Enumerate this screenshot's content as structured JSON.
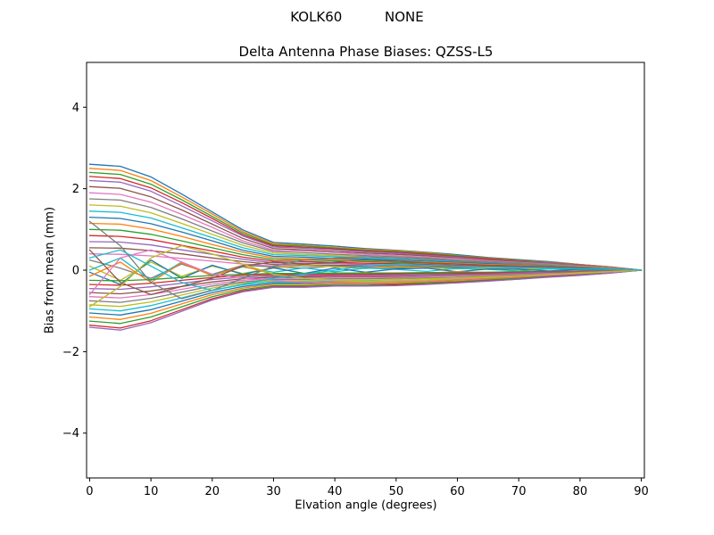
{
  "figure": {
    "suptitle": "KOLK60          NONE",
    "background": "#ffffff"
  },
  "chart_data": {
    "type": "line",
    "title": "Delta Antenna Phase Biases: QZSS-L5",
    "xlabel": "Elvation angle (degrees)",
    "ylabel": "Bias from mean (mm)",
    "xlim": [
      -0.5,
      90.5
    ],
    "ylim": [
      -5.1,
      5.1
    ],
    "xticks": [
      0,
      10,
      20,
      30,
      40,
      50,
      60,
      70,
      80,
      90
    ],
    "xtick_labels": [
      "0",
      "10",
      "20",
      "30",
      "40",
      "50",
      "60",
      "70",
      "80",
      "90"
    ],
    "yticks": [
      -4,
      -2,
      0,
      2,
      4
    ],
    "ytick_labels": [
      "−4",
      "−2",
      "0",
      "2",
      "4"
    ],
    "grid": false,
    "legend": null,
    "line_width": 1.3,
    "x": [
      0,
      5,
      10,
      15,
      20,
      25,
      30,
      35,
      40,
      45,
      50,
      55,
      60,
      65,
      70,
      75,
      80,
      85,
      90
    ],
    "series": [
      {
        "name": "line-01",
        "color": "#1f77b4",
        "values": [
          2.6,
          2.55,
          2.29,
          1.87,
          1.43,
          0.99,
          0.68,
          0.64,
          0.59,
          0.53,
          0.49,
          0.44,
          0.38,
          0.31,
          0.26,
          0.21,
          0.14,
          0.08,
          0
        ]
      },
      {
        "name": "line-02",
        "color": "#ff7f0e",
        "values": [
          2.5,
          2.45,
          2.2,
          1.8,
          1.38,
          0.95,
          0.65,
          0.61,
          0.56,
          0.51,
          0.48,
          0.43,
          0.36,
          0.3,
          0.25,
          0.2,
          0.14,
          0.08,
          0
        ]
      },
      {
        "name": "line-03",
        "color": "#2ca02c",
        "values": [
          2.4,
          2.35,
          2.11,
          1.73,
          1.32,
          0.91,
          0.62,
          0.59,
          0.54,
          0.49,
          0.46,
          0.41,
          0.35,
          0.29,
          0.24,
          0.19,
          0.13,
          0.07,
          0
        ]
      },
      {
        "name": "line-04",
        "color": "#d62728",
        "values": [
          2.3,
          2.25,
          2.02,
          1.66,
          1.27,
          0.87,
          0.6,
          0.56,
          0.52,
          0.47,
          0.44,
          0.39,
          0.33,
          0.28,
          0.23,
          0.18,
          0.13,
          0.07,
          0
        ]
      },
      {
        "name": "line-05",
        "color": "#9467bd",
        "values": [
          2.2,
          2.16,
          1.94,
          1.58,
          1.21,
          0.84,
          0.57,
          0.54,
          0.5,
          0.45,
          0.42,
          0.37,
          0.32,
          0.26,
          0.22,
          0.18,
          0.12,
          0.07,
          0
        ]
      },
      {
        "name": "line-06",
        "color": "#8c564b",
        "values": [
          2.05,
          2.01,
          1.8,
          1.48,
          1.13,
          0.78,
          0.53,
          0.5,
          0.46,
          0.42,
          0.39,
          0.35,
          0.3,
          0.25,
          0.21,
          0.16,
          0.11,
          0.06,
          0
        ]
      },
      {
        "name": "line-07",
        "color": "#e377c2",
        "values": [
          1.9,
          1.86,
          1.67,
          1.37,
          1.05,
          0.72,
          0.49,
          0.47,
          0.43,
          0.39,
          0.36,
          0.32,
          0.28,
          0.23,
          0.19,
          0.15,
          0.1,
          0.06,
          0
        ]
      },
      {
        "name": "line-08",
        "color": "#7f7f7f",
        "values": [
          1.75,
          1.72,
          1.54,
          1.26,
          0.96,
          0.67,
          0.46,
          0.43,
          0.39,
          0.36,
          0.33,
          0.3,
          0.25,
          0.21,
          0.18,
          0.14,
          0.1,
          0.05,
          0
        ]
      },
      {
        "name": "line-09",
        "color": "#bcbd22",
        "values": [
          1.6,
          1.57,
          1.41,
          1.15,
          0.88,
          0.61,
          0.42,
          0.39,
          0.36,
          0.33,
          0.3,
          0.27,
          0.23,
          0.19,
          0.16,
          0.13,
          0.09,
          0.05,
          0
        ]
      },
      {
        "name": "line-10",
        "color": "#17becf",
        "values": [
          1.45,
          1.42,
          1.28,
          1.04,
          0.8,
          0.55,
          0.38,
          0.36,
          0.33,
          0.3,
          0.28,
          0.25,
          0.21,
          0.17,
          0.15,
          0.12,
          0.08,
          0.04,
          0
        ]
      },
      {
        "name": "line-11",
        "color": "#1f77b4",
        "values": [
          1.3,
          1.27,
          1.14,
          0.94,
          0.72,
          0.49,
          0.34,
          0.32,
          0.29,
          0.27,
          0.25,
          0.22,
          0.19,
          0.16,
          0.13,
          0.1,
          0.07,
          0.04,
          0
        ]
      },
      {
        "name": "line-12",
        "color": "#ff7f0e",
        "values": [
          1.15,
          1.13,
          1.01,
          0.83,
          0.63,
          0.44,
          0.3,
          0.28,
          0.26,
          0.24,
          0.22,
          0.2,
          0.17,
          0.14,
          0.12,
          0.09,
          0.06,
          0.03,
          0
        ]
      },
      {
        "name": "line-13",
        "color": "#2ca02c",
        "values": [
          1,
          0.98,
          0.88,
          0.72,
          0.55,
          0.38,
          0.26,
          0.25,
          0.23,
          0.21,
          0.19,
          0.17,
          0.15,
          0.12,
          0.1,
          0.08,
          0.06,
          0.03,
          0
        ]
      },
      {
        "name": "line-14",
        "color": "#d62728",
        "values": [
          0.85,
          0.83,
          0.75,
          0.61,
          0.47,
          0.32,
          0.22,
          0.21,
          0.19,
          0.17,
          0.16,
          0.14,
          0.12,
          0.1,
          0.09,
          0.07,
          0.05,
          0.03,
          0
        ]
      },
      {
        "name": "line-15",
        "color": "#9467bd",
        "values": [
          0.7,
          0.69,
          0.62,
          0.5,
          0.39,
          0.27,
          0.18,
          0.17,
          0.16,
          0.14,
          0.13,
          0.12,
          0.1,
          0.08,
          0.07,
          0.06,
          0.04,
          0.02,
          0
        ]
      },
      {
        "name": "line-16",
        "color": "#8c564b",
        "values": [
          0.55,
          0.54,
          0.48,
          0.4,
          0.3,
          0.21,
          0.14,
          0.13,
          0.12,
          0.11,
          0.1,
          0.09,
          0.08,
          0.07,
          0.06,
          0.04,
          0.03,
          0.02,
          0
        ]
      },
      {
        "name": "line-17",
        "color": "#e377c2",
        "values": [
          0.4,
          0.39,
          0.35,
          0.29,
          0.22,
          0.15,
          0.1,
          0.1,
          0.09,
          0.08,
          0.08,
          0.07,
          0.06,
          0.05,
          0.04,
          0.03,
          0.02,
          0.01,
          0
        ]
      },
      {
        "name": "line-18",
        "color": "#7f7f7f",
        "values": [
          0.25,
          0.05,
          -0.2,
          0.15,
          -0.1,
          0.12,
          0.08,
          0.05,
          0.1,
          0.07,
          0.05,
          0.08,
          0.06,
          0.04,
          0.05,
          0.03,
          0.02,
          0.01,
          0
        ]
      },
      {
        "name": "line-19",
        "color": "#bcbd22",
        "values": [
          0.1,
          -0.25,
          0.2,
          -0.15,
          0.1,
          -0.08,
          0.05,
          0.12,
          0.08,
          0.04,
          0.09,
          0.06,
          0.03,
          0.05,
          0.02,
          0.04,
          0.02,
          0.01,
          0
        ]
      },
      {
        "name": "line-20",
        "color": "#17becf",
        "values": [
          0,
          0.3,
          -0.25,
          0.2,
          -0.12,
          0.08,
          -0.05,
          0.06,
          -0.04,
          0.05,
          0.02,
          -0.03,
          0.04,
          0.02,
          -0.02,
          0.03,
          0.01,
          0.01,
          0
        ]
      },
      {
        "name": "line-21",
        "color": "#1f77b4",
        "values": [
          -0.05,
          -0.35,
          0.25,
          -0.2,
          0.12,
          -0.1,
          0.06,
          -0.08,
          0.05,
          -0.05,
          0.03,
          0.05,
          -0.04,
          0.03,
          0.02,
          -0.02,
          0.02,
          0.01,
          0
        ]
      },
      {
        "name": "line-22",
        "color": "#ff7f0e",
        "values": [
          -0.15,
          0.2,
          -0.3,
          0.18,
          -0.14,
          0.1,
          -0.1,
          -0.15,
          -0.1,
          -0.06,
          -0.1,
          -0.07,
          -0.04,
          -0.06,
          -0.03,
          -0.04,
          -0.02,
          -0.01,
          0
        ]
      },
      {
        "name": "line-23",
        "color": "#2ca02c",
        "values": [
          -0.25,
          -0.26,
          -0.23,
          -0.18,
          -0.13,
          -0.1,
          -0.08,
          -0.08,
          -0.07,
          -0.07,
          -0.07,
          -0.06,
          -0.06,
          -0.05,
          -0.04,
          -0.03,
          -0.02,
          -0.01,
          0
        ]
      },
      {
        "name": "line-24",
        "color": "#d62728",
        "values": [
          -0.35,
          -0.37,
          -0.32,
          -0.25,
          -0.18,
          -0.13,
          -0.11,
          -0.11,
          -0.1,
          -0.1,
          -0.09,
          -0.09,
          -0.08,
          -0.07,
          -0.06,
          -0.04,
          -0.03,
          -0.02,
          0
        ]
      },
      {
        "name": "line-25",
        "color": "#9467bd",
        "values": [
          -0.45,
          -0.47,
          -0.41,
          -0.32,
          -0.23,
          -0.17,
          -0.14,
          -0.14,
          -0.13,
          -0.13,
          -0.12,
          -0.11,
          -0.1,
          -0.09,
          -0.07,
          -0.05,
          -0.04,
          -0.02,
          0
        ]
      },
      {
        "name": "line-26",
        "color": "#8c564b",
        "values": [
          -0.55,
          -0.58,
          -0.51,
          -0.4,
          -0.29,
          -0.21,
          -0.17,
          -0.17,
          -0.15,
          -0.15,
          -0.15,
          -0.14,
          -0.12,
          -0.1,
          -0.09,
          -0.07,
          -0.05,
          -0.03,
          0
        ]
      },
      {
        "name": "line-27",
        "color": "#e377c2",
        "values": [
          -0.65,
          -0.68,
          -0.6,
          -0.47,
          -0.34,
          -0.25,
          -0.2,
          -0.2,
          -0.18,
          -0.18,
          -0.18,
          -0.16,
          -0.14,
          -0.12,
          -0.1,
          -0.08,
          -0.06,
          -0.03,
          0
        ]
      },
      {
        "name": "line-28",
        "color": "#7f7f7f",
        "values": [
          -0.75,
          -0.79,
          -0.69,
          -0.54,
          -0.39,
          -0.29,
          -0.23,
          -0.23,
          -0.21,
          -0.21,
          -0.2,
          -0.19,
          -0.17,
          -0.14,
          -0.12,
          -0.09,
          -0.07,
          -0.04,
          0
        ]
      },
      {
        "name": "line-29",
        "color": "#bcbd22",
        "values": [
          -0.85,
          -0.89,
          -0.78,
          -0.61,
          -0.44,
          -0.32,
          -0.26,
          -0.26,
          -0.24,
          -0.24,
          -0.23,
          -0.21,
          -0.19,
          -0.16,
          -0.14,
          -0.1,
          -0.08,
          -0.04,
          0
        ]
      },
      {
        "name": "line-30",
        "color": "#17becf",
        "values": [
          -0.95,
          -1,
          -0.87,
          -0.68,
          -0.49,
          -0.36,
          -0.29,
          -0.29,
          -0.27,
          -0.27,
          -0.26,
          -0.24,
          -0.21,
          -0.18,
          -0.15,
          -0.11,
          -0.09,
          -0.05,
          0
        ]
      },
      {
        "name": "line-31",
        "color": "#1f77b4",
        "values": [
          -1.05,
          -1.1,
          -0.97,
          -0.76,
          -0.55,
          -0.4,
          -0.32,
          -0.32,
          -0.29,
          -0.29,
          -0.28,
          -0.26,
          -0.23,
          -0.2,
          -0.17,
          -0.13,
          -0.09,
          -0.05,
          0
        ]
      },
      {
        "name": "line-32",
        "color": "#ff7f0e",
        "values": [
          -1.15,
          -1.21,
          -1.06,
          -0.83,
          -0.6,
          -0.44,
          -0.35,
          -0.35,
          -0.32,
          -0.32,
          -0.31,
          -0.29,
          -0.25,
          -0.22,
          -0.18,
          -0.14,
          -0.1,
          -0.06,
          0
        ]
      },
      {
        "name": "line-33",
        "color": "#2ca02c",
        "values": [
          -1.25,
          -1.31,
          -1.15,
          -0.9,
          -0.65,
          -0.48,
          -0.38,
          -0.38,
          -0.35,
          -0.35,
          -0.34,
          -0.31,
          -0.28,
          -0.24,
          -0.2,
          -0.15,
          -0.11,
          -0.06,
          0
        ]
      },
      {
        "name": "line-34",
        "color": "#d62728",
        "values": [
          -1.35,
          -1.42,
          -1.24,
          -0.97,
          -0.7,
          -0.51,
          -0.41,
          -0.41,
          -0.38,
          -0.38,
          -0.36,
          -0.34,
          -0.3,
          -0.26,
          -0.22,
          -0.16,
          -0.12,
          -0.07,
          0
        ]
      },
      {
        "name": "line-35",
        "color": "#9467bd",
        "values": [
          -1.4,
          -1.47,
          -1.29,
          -1.01,
          -0.73,
          -0.53,
          -0.42,
          -0.42,
          -0.39,
          -0.39,
          -0.38,
          -0.35,
          -0.31,
          -0.27,
          -0.22,
          -0.17,
          -0.13,
          -0.07,
          0
        ]
      },
      {
        "name": "line-36",
        "color": "#8c564b",
        "values": [
          0.5,
          -0.3,
          -0.6,
          -0.4,
          -0.2,
          0.1,
          0.2,
          0.15,
          0.2,
          0.25,
          0.22,
          0.18,
          0.15,
          0.12,
          0.1,
          0.08,
          0.05,
          0.03,
          0
        ]
      },
      {
        "name": "line-37",
        "color": "#e377c2",
        "values": [
          -0.6,
          0.3,
          0.5,
          0.2,
          -0.1,
          -0.2,
          -0.25,
          -0.3,
          -0.28,
          -0.3,
          -0.28,
          -0.26,
          -0.22,
          -0.19,
          -0.15,
          -0.12,
          -0.08,
          -0.04,
          0
        ]
      },
      {
        "name": "line-38",
        "color": "#7f7f7f",
        "values": [
          1.2,
          0.6,
          -0.3,
          -0.7,
          -0.5,
          -0.2,
          0.1,
          0.25,
          0.3,
          0.33,
          0.3,
          0.27,
          0.23,
          0.19,
          0.16,
          0.12,
          0.08,
          0.04,
          0
        ]
      },
      {
        "name": "line-39",
        "color": "#bcbd22",
        "values": [
          -0.9,
          -0.4,
          0.3,
          0.6,
          0.4,
          0.15,
          -0.1,
          -0.2,
          -0.25,
          -0.28,
          -0.26,
          -0.24,
          -0.2,
          -0.17,
          -0.14,
          -0.1,
          -0.07,
          -0.04,
          0
        ]
      },
      {
        "name": "line-40",
        "color": "#17becf",
        "values": [
          0.3,
          0.5,
          0.1,
          -0.3,
          -0.5,
          -0.35,
          -0.2,
          -0.1,
          0,
          0.1,
          0.15,
          0.12,
          0.1,
          0.08,
          0.06,
          0.05,
          0.03,
          0.02,
          0
        ]
      }
    ]
  }
}
